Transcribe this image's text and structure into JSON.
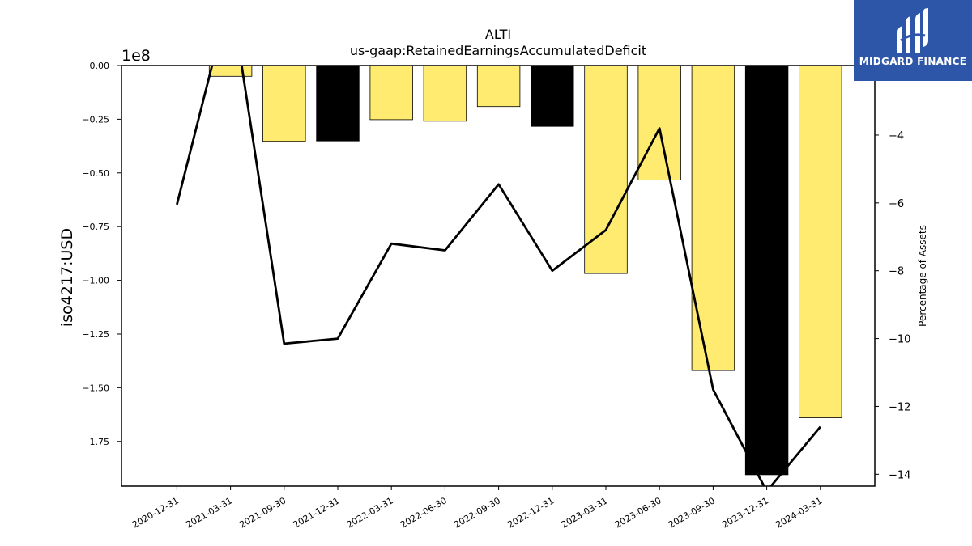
{
  "chart_data": {
    "type": "bar",
    "title": "ALTI",
    "subtitle": "us-gaap:RetainedEarningsAccumulatedDeficit",
    "ylabel": "iso4217:USD",
    "y_offset_label": "1e8",
    "y2label": "Percentage of Assets",
    "categories": [
      "2020-12-31",
      "2021-03-31",
      "2021-09-30",
      "2021-12-31",
      "2022-03-31",
      "2022-06-30",
      "2022-09-30",
      "2022-12-31",
      "2023-03-31",
      "2023-06-30",
      "2023-09-30",
      "2023-12-31",
      "2024-03-31"
    ],
    "series": [
      {
        "type": "bar",
        "axis": "left",
        "values": [
          0,
          -5000000,
          -35300000,
          -35100000,
          -25200000,
          -25900000,
          -19100000,
          -28300000,
          -96800000,
          -53300000,
          -142000000,
          -190500000,
          -164000000
        ],
        "colors": [
          "#ffeb70",
          "#ffeb70",
          "#ffeb70",
          "#000000",
          "#ffeb70",
          "#ffeb70",
          "#ffeb70",
          "#000000",
          "#ffeb70",
          "#ffeb70",
          "#ffeb70",
          "#000000",
          "#ffeb70"
        ]
      },
      {
        "type": "line",
        "axis": "right",
        "color": "#000000",
        "values": [
          -6.05,
          0.2,
          -10.15,
          -10.0,
          -7.2,
          -7.4,
          -5.45,
          -8.0,
          -6.8,
          -3.8,
          -11.5,
          -14.5,
          -12.6
        ]
      }
    ],
    "ylim": [
      -195800000,
      0
    ],
    "y2lim": [
      -14.35,
      -1.95
    ],
    "yticks": [
      {
        "v": 0,
        "label": "0.00"
      },
      {
        "v": -25000000,
        "label": "−0.25"
      },
      {
        "v": -50000000,
        "label": "−0.50"
      },
      {
        "v": -75000000,
        "label": "−0.75"
      },
      {
        "v": -100000000,
        "label": "−1.00"
      },
      {
        "v": -125000000,
        "label": "−1.25"
      },
      {
        "v": -150000000,
        "label": "−1.50"
      },
      {
        "v": -175000000,
        "label": "−1.75"
      }
    ],
    "y2ticks": [
      {
        "v": -4,
        "label": "−4"
      },
      {
        "v": -6,
        "label": "−6"
      },
      {
        "v": -8,
        "label": "−8"
      },
      {
        "v": -10,
        "label": "−10"
      },
      {
        "v": -12,
        "label": "−12"
      },
      {
        "v": -14,
        "label": "−14"
      }
    ],
    "grid": false,
    "legend": "none"
  },
  "logo": {
    "text": "MIDGARD FINANCE",
    "color": "#2e56a8",
    "icon": "midgard-logo-icon"
  }
}
